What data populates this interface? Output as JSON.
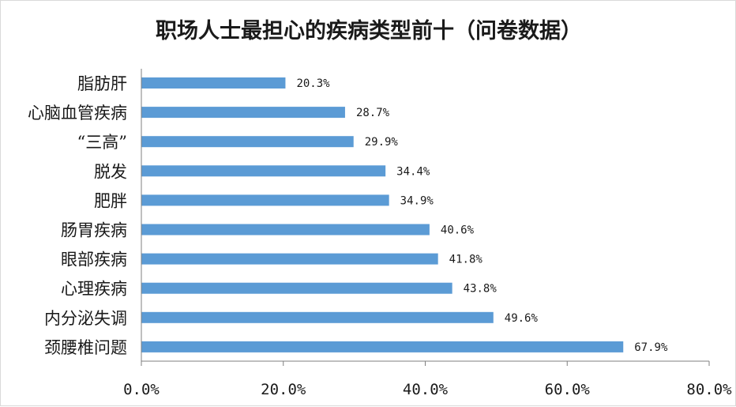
{
  "chart_data": {
    "type": "bar",
    "orientation": "horizontal",
    "title": "职场人士最担心的疾病类型前十（问卷数据）",
    "categories": [
      "脂肪肝",
      "心脑血管疾病",
      "“三高”",
      "脱发",
      "肥胖",
      "肠胃疾病",
      "眼部疾病",
      "心理疾病",
      "内分泌失调",
      "颈腰椎问题"
    ],
    "values": [
      20.3,
      28.7,
      29.9,
      34.4,
      34.9,
      40.6,
      41.8,
      43.8,
      49.6,
      67.9
    ],
    "value_labels": [
      "20.3%",
      "28.7%",
      "29.9%",
      "34.4%",
      "34.9%",
      "40.6%",
      "41.8%",
      "43.8%",
      "49.6%",
      "67.9%"
    ],
    "xlim": [
      0,
      80
    ],
    "x_ticks": [
      0,
      20,
      40,
      60,
      80
    ],
    "x_tick_labels": [
      "0.0%",
      "20.0%",
      "40.0%",
      "60.0%",
      "80.0%"
    ],
    "bar_color": "#5b9bd5",
    "grid": false,
    "legend": "none"
  }
}
